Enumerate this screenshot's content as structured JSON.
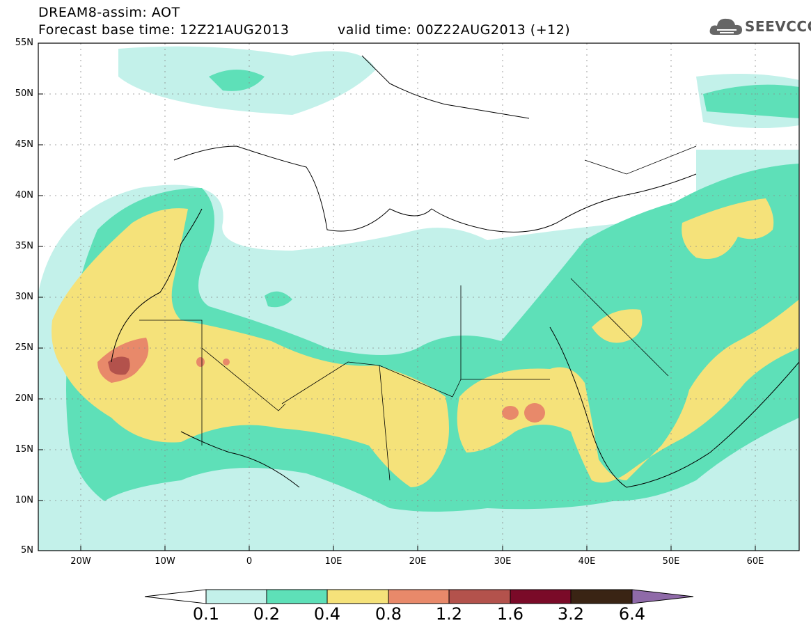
{
  "header": {
    "title": "DREAM8-assim: AOT",
    "base_time": "Forecast base time: 12Z21AUG2013",
    "valid_time": "valid time: 00Z22AUG2013 (+12)"
  },
  "logo": {
    "text": "SEEVCCC",
    "icon": "cloud-icon"
  },
  "axes": {
    "lat_labels": [
      "55N",
      "50N",
      "45N",
      "40N",
      "35N",
      "30N",
      "25N",
      "20N",
      "15N",
      "10N",
      "5N"
    ],
    "lon_labels": [
      "20W",
      "10W",
      "0",
      "10E",
      "20E",
      "30E",
      "40E",
      "50E",
      "60E"
    ]
  },
  "colorbar": {
    "labels": [
      "0.1",
      "0.2",
      "0.4",
      "0.8",
      "1.2",
      "1.6",
      "3.2",
      "6.4"
    ],
    "colors": [
      "#ffffff",
      "#c3f1ea",
      "#5ee0b8",
      "#f5e27a",
      "#e8896a",
      "#b3524c",
      "#7a0a28",
      "#3a2414",
      "#8f6aa8"
    ]
  },
  "map_colors": {
    "level_01": "#c3f1ea",
    "level_02": "#5ee0b8",
    "level_04": "#f5e27a",
    "level_08": "#e8896a",
    "level_12": "#b3524c"
  }
}
